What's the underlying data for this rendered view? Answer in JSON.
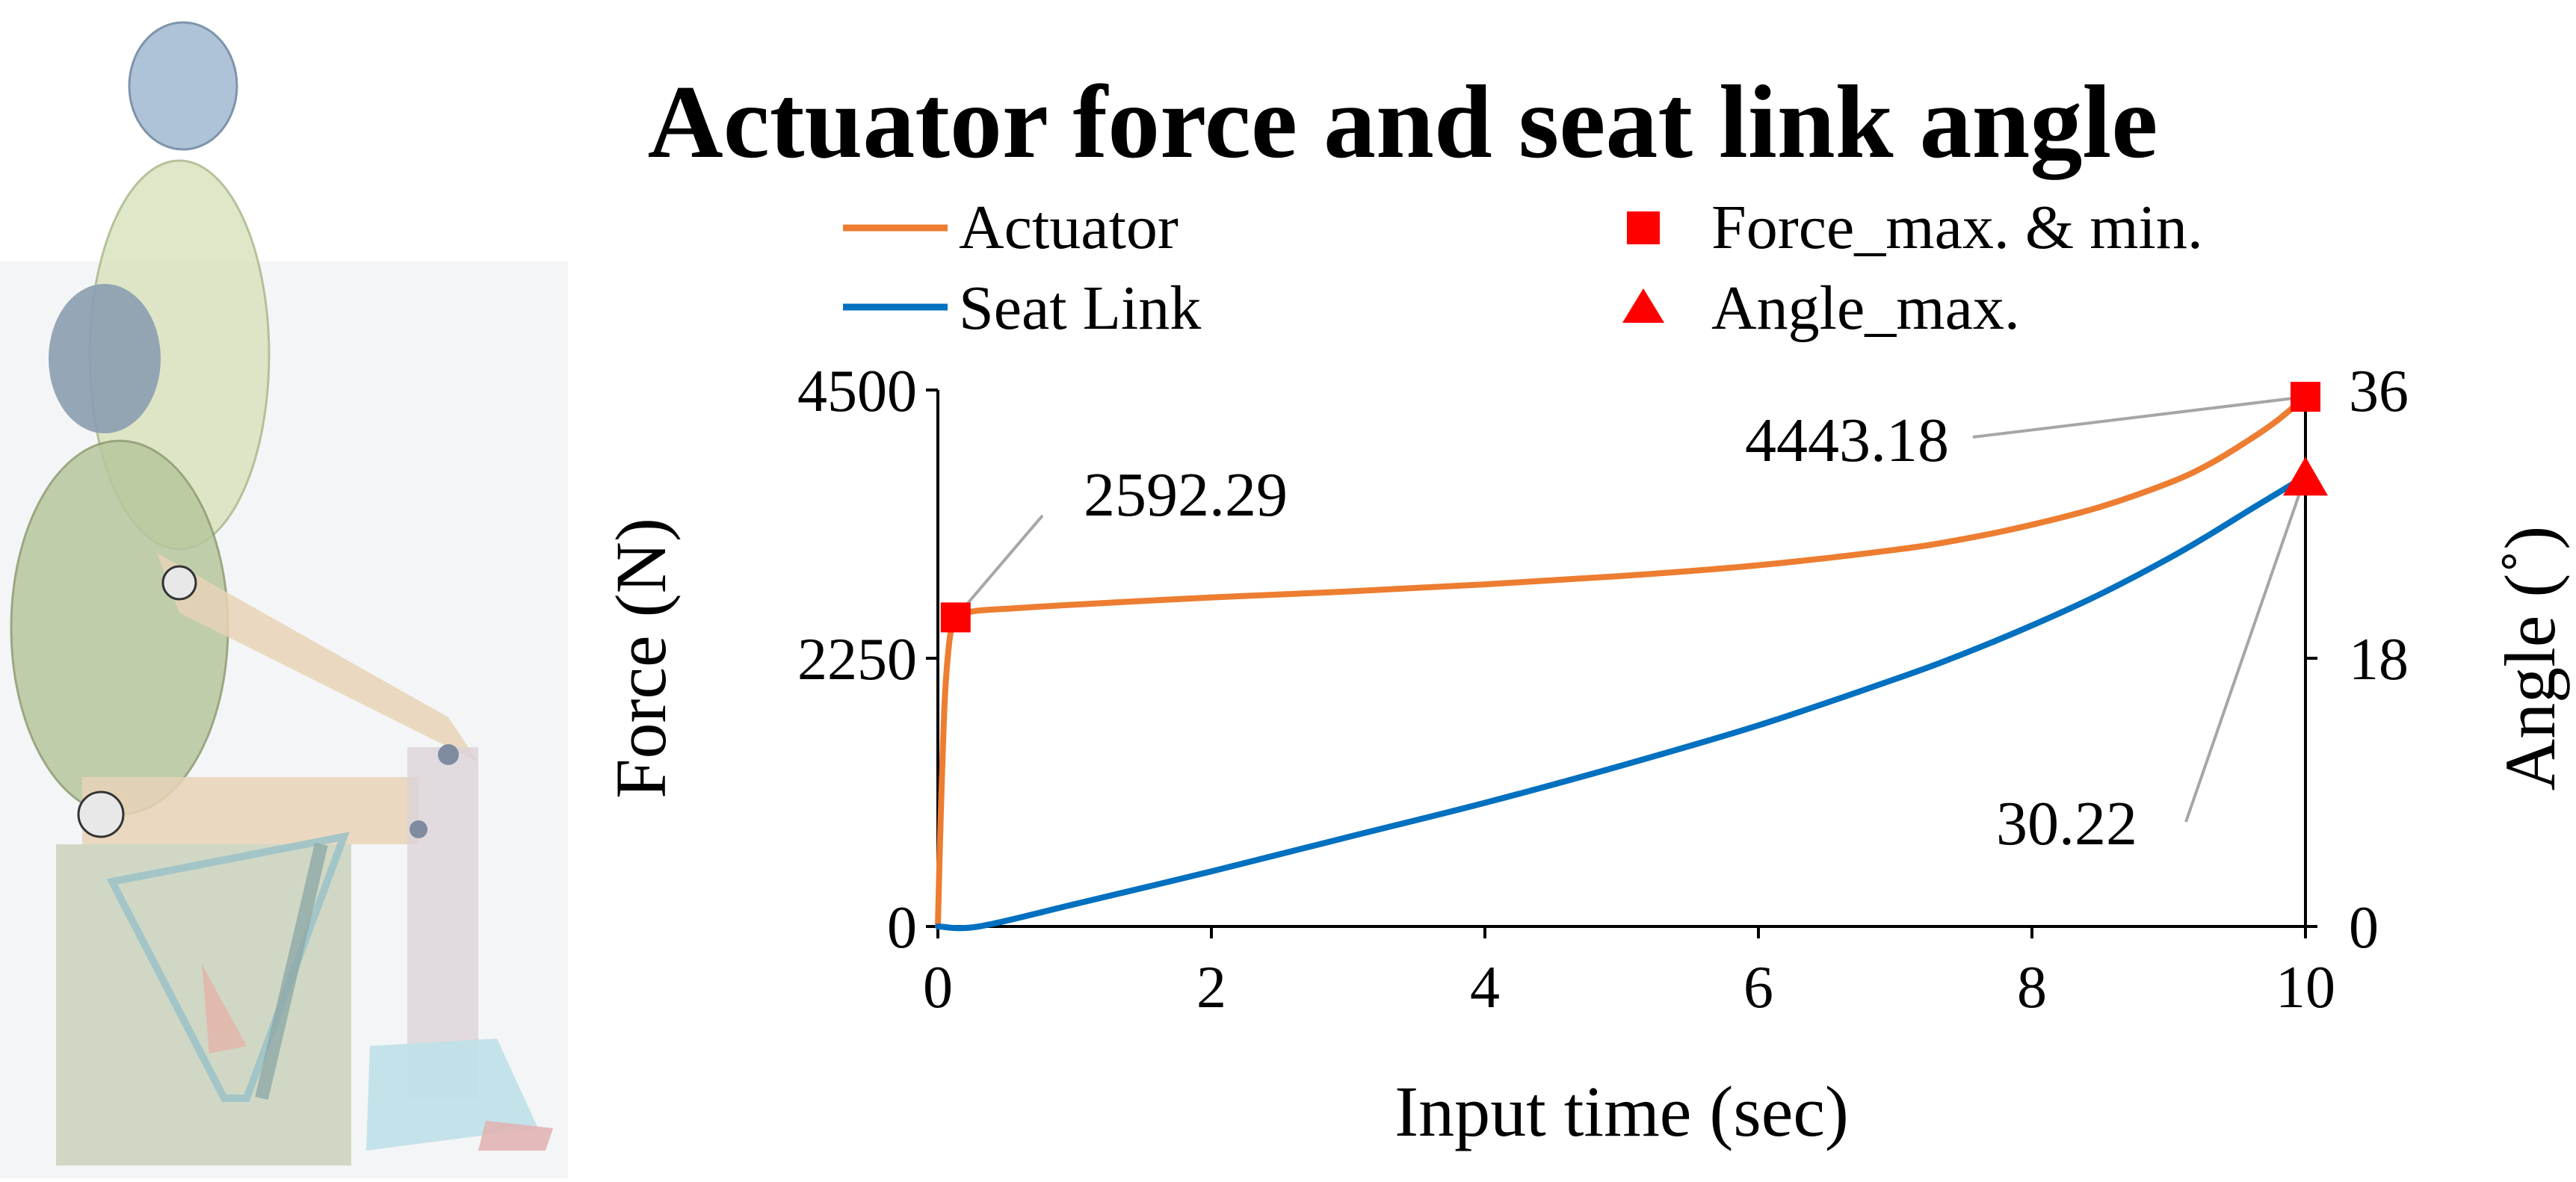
{
  "colors": {
    "actuator": "#ED7D31",
    "seat_link": "#0070C0",
    "marker": "#FF0000",
    "leader": "#A6A6A6",
    "axis": "#000000"
  },
  "chart_data": {
    "type": "line",
    "title": "Actuator force and seat link angle",
    "xlabel": "Input time (sec)",
    "ylabel_left": "Force (N)",
    "ylabel_right": "Angle (˚)",
    "xlim": [
      0,
      10
    ],
    "ylim_left": [
      0,
      4500
    ],
    "ylim_right": [
      0,
      36
    ],
    "x_ticks": [
      "0",
      "2",
      "4",
      "6",
      "8",
      "10"
    ],
    "y_left_ticks": [
      "0",
      "2250",
      "4500"
    ],
    "y_right_ticks": [
      "0",
      "18",
      "36"
    ],
    "grid": false,
    "legend": [
      {
        "label": "Actuator",
        "marker": "line",
        "color": "#ED7D31"
      },
      {
        "label": "Seat Link",
        "marker": "line",
        "color": "#0070C0"
      },
      {
        "label": "Force_max. & min.",
        "marker": "square",
        "color": "#FF0000"
      },
      {
        "label": "Angle_max.",
        "marker": "triangle",
        "color": "#FF0000"
      }
    ],
    "legend_position": "top",
    "series": [
      {
        "name": "Actuator",
        "axis": "left",
        "color": "#ED7D31",
        "x": [
          0,
          0.02,
          0.05,
          0.08,
          0.1,
          0.13,
          0.16,
          0.2,
          0.3,
          0.5,
          1,
          2,
          3,
          4,
          5,
          6,
          7,
          7.5,
          8,
          8.5,
          9,
          9.3,
          9.6,
          9.8,
          10
        ],
        "y": [
          0,
          900,
          1900,
          2350,
          2500,
          2592.29,
          2620,
          2630,
          2650,
          2665,
          2700,
          2760,
          2810,
          2870,
          2940,
          3030,
          3160,
          3250,
          3370,
          3520,
          3720,
          3880,
          4090,
          4250,
          4443.18
        ]
      },
      {
        "name": "Seat Link",
        "axis": "right",
        "color": "#0070C0",
        "x": [
          0,
          0.3,
          1,
          2,
          3,
          4,
          5,
          6,
          7,
          7.5,
          8,
          8.5,
          9,
          9.3,
          9.6,
          9.8,
          10
        ],
        "y": [
          0,
          0,
          1.5,
          3.7,
          6.0,
          8.3,
          10.8,
          13.5,
          16.6,
          18.3,
          20.2,
          22.3,
          24.7,
          26.3,
          28.0,
          29.1,
          30.22
        ]
      }
    ],
    "points": [
      {
        "name": "Force_max. & min.",
        "x": 0.13,
        "y": 2592.29,
        "axis": "left",
        "label": "2592.29"
      },
      {
        "name": "Force_max. & min.",
        "x": 10,
        "y": 4443.18,
        "axis": "left",
        "label": "4443.18"
      },
      {
        "name": "Angle_max.",
        "x": 10,
        "y": 30.22,
        "axis": "right",
        "label": "30.22"
      }
    ]
  }
}
